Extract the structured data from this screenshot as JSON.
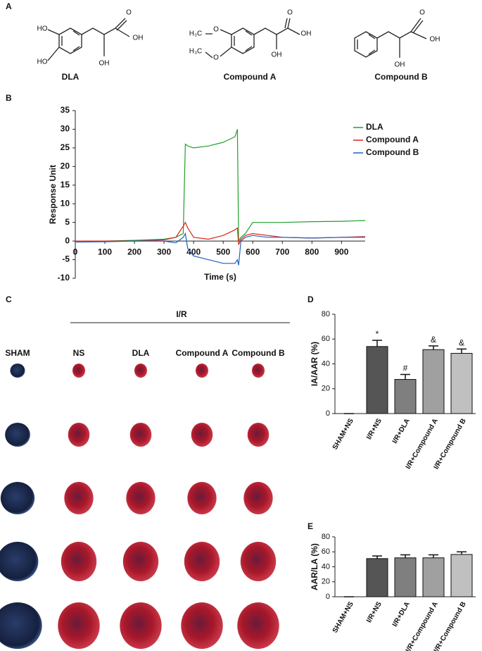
{
  "panels": {
    "a": "A",
    "b": "B",
    "c": "C",
    "d": "D",
    "e": "E"
  },
  "structures": [
    {
      "name": "DLA",
      "atoms": [
        "HO",
        "HO",
        "O",
        "OH",
        "OH"
      ]
    },
    {
      "name": "Compound A",
      "atoms": [
        "H₃C",
        "O",
        "H₃C",
        "O",
        "O",
        "OH",
        "OH"
      ]
    },
    {
      "name": "Compound B",
      "atoms": [
        "O",
        "OH",
        "OH"
      ]
    }
  ],
  "chart_data": [
    {
      "type": "line",
      "xlabel": "Time (s)",
      "ylabel": "Response Unit",
      "x": [
        0,
        100,
        200,
        300,
        340,
        365,
        372,
        380,
        400,
        450,
        500,
        540,
        548,
        552,
        560,
        575,
        600,
        650,
        700,
        800,
        900,
        980
      ],
      "series": [
        {
          "name": "DLA",
          "color": "#1fa12a",
          "values": [
            0,
            0,
            0.2,
            0.5,
            1,
            2,
            26,
            25.5,
            25,
            25.5,
            26.5,
            28,
            30,
            0,
            1,
            2,
            5,
            5,
            5,
            5.2,
            5.3,
            5.5
          ]
        },
        {
          "name": "Compound A",
          "color": "#e0231c",
          "values": [
            0,
            0,
            0,
            0.3,
            1,
            4,
            5,
            3.5,
            1,
            0.5,
            1.5,
            3,
            3.5,
            -1,
            0.5,
            1.5,
            2,
            1.5,
            1,
            0.8,
            1,
            1.2
          ]
        },
        {
          "name": "Compound B",
          "color": "#1f5fbf",
          "values": [
            -0.3,
            -0.2,
            0,
            0,
            -0.5,
            1,
            2,
            -2,
            -4,
            -5,
            -6,
            -6,
            -5,
            -6.5,
            0,
            1,
            1.5,
            1,
            1,
            0.8,
            1,
            1
          ]
        }
      ],
      "xlim": [
        0,
        980
      ],
      "xticks": [
        0,
        100,
        200,
        300,
        400,
        500,
        600,
        700,
        800,
        900
      ],
      "ylim": [
        -10,
        35
      ],
      "yticks": [
        -10,
        -5,
        0,
        5,
        10,
        15,
        20,
        25,
        30,
        35
      ],
      "legend": "upper right",
      "grid": false
    },
    {
      "type": "bar",
      "ylabel": "IA/AAR (%)",
      "categories": [
        "SHAM+NS",
        "I/R+NS",
        "I/R+DLA",
        "I/R+Compound A",
        "I/R+Compound B"
      ],
      "values": [
        0,
        54,
        27.5,
        51.5,
        48.5
      ],
      "errors": [
        0,
        5,
        4,
        3,
        3.5
      ],
      "significance": [
        null,
        "*",
        "#",
        "&",
        "&"
      ],
      "colors": [
        "#333333",
        "#555555",
        "#7f7f7f",
        "#a0a0a0",
        "#c0c0c0"
      ],
      "ylim": [
        0,
        80
      ],
      "yticks": [
        0,
        20,
        40,
        60,
        80
      ]
    },
    {
      "type": "bar",
      "ylabel": "AAR/LA (%)",
      "categories": [
        "SHAM+NS",
        "I/R+NS",
        "I/R+DLA",
        "I/R+Compound A",
        "I/R+Compound B"
      ],
      "values": [
        0,
        51,
        52,
        52,
        56.5
      ],
      "errors": [
        0,
        3.5,
        4,
        4,
        3.5
      ],
      "colors": [
        "#333333",
        "#555555",
        "#7f7f7f",
        "#a0a0a0",
        "#c0c0c0"
      ],
      "ylim": [
        0,
        80
      ],
      "yticks": [
        0,
        20,
        40,
        60,
        80
      ]
    }
  ],
  "photos": {
    "group": "I/R",
    "columns": [
      "SHAM",
      "NS",
      "DLA",
      "Compound A",
      "Compound B"
    ]
  }
}
